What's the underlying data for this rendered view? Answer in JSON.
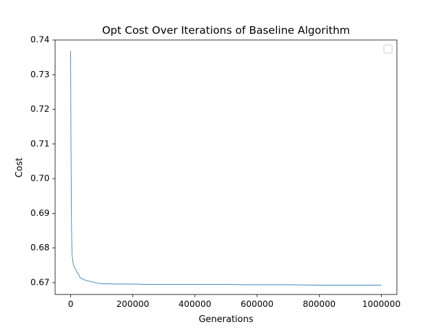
{
  "chart_data": {
    "type": "line",
    "title": "Opt Cost Over Iterations of Baseline Algorithm",
    "xlabel": "Generations",
    "ylabel": "Cost",
    "xlim": [
      -50000,
      1050000
    ],
    "ylim": [
      0.6666,
      0.74
    ],
    "x_ticks": [
      0,
      200000,
      400000,
      600000,
      800000,
      1000000
    ],
    "x_tick_labels": [
      "0",
      "200000",
      "400000",
      "600000",
      "800000",
      "1000000"
    ],
    "y_ticks": [
      0.67,
      0.68,
      0.69,
      0.7,
      0.71,
      0.72,
      0.73,
      0.74
    ],
    "y_tick_labels": [
      "0.67",
      "0.68",
      "0.69",
      "0.70",
      "0.71",
      "0.72",
      "0.73",
      "0.74"
    ],
    "grid": false,
    "legend": {
      "placement": "top-right",
      "entries": []
    },
    "series": [
      {
        "color": "#1f77b4",
        "x": [
          0,
          500,
          1000,
          2000,
          3000,
          4000,
          5000,
          6000,
          8000,
          10000,
          12000,
          15000,
          18000,
          20000,
          25000,
          30000,
          35000,
          40000,
          45000,
          50000,
          60000,
          70000,
          80000,
          90000,
          100000,
          150000,
          200000,
          250000,
          300000,
          400000,
          500000,
          550000,
          600000,
          700000,
          800000,
          900000,
          1000000
        ],
        "y": [
          0.7368,
          0.725,
          0.71,
          0.695,
          0.685,
          0.68,
          0.678,
          0.677,
          0.6755,
          0.675,
          0.6745,
          0.674,
          0.6735,
          0.673,
          0.6725,
          0.6715,
          0.6712,
          0.671,
          0.6708,
          0.6706,
          0.6704,
          0.6702,
          0.67,
          0.6698,
          0.6697,
          0.6696,
          0.6696,
          0.6695,
          0.6695,
          0.6695,
          0.6695,
          0.6694,
          0.6694,
          0.6694,
          0.6693,
          0.6693,
          0.6693
        ]
      }
    ]
  }
}
